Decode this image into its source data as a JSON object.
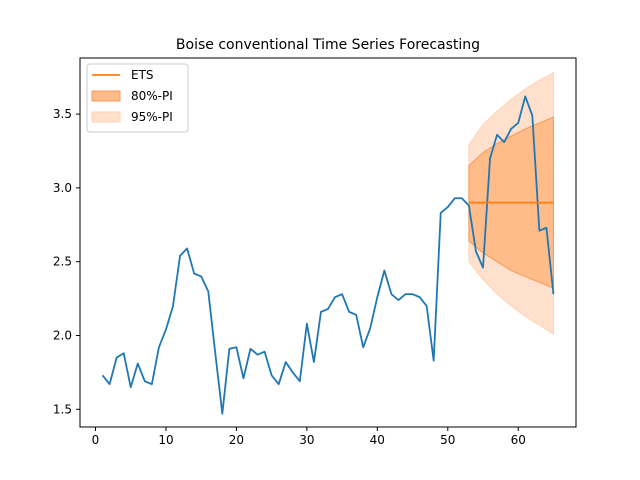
{
  "chart_data": {
    "type": "line",
    "title": "Boise conventional Time Series Forecasting",
    "xlabel": "",
    "ylabel": "",
    "xlim": [
      -2.2,
      68.2
    ],
    "ylim": [
      1.38,
      3.88
    ],
    "xticks": [
      0,
      10,
      20,
      30,
      40,
      50,
      60
    ],
    "yticks": [
      1.5,
      2.0,
      2.5,
      3.0,
      3.5
    ],
    "xtick_labels": [
      "0",
      "10",
      "20",
      "30",
      "40",
      "50",
      "60"
    ],
    "ytick_labels": [
      "1.5",
      "2.0",
      "2.5",
      "3.0",
      "3.5"
    ],
    "grid": false,
    "legend_position": "top-left",
    "colors": {
      "actual": "#1f77b4",
      "ets": "#ff7f0e",
      "pi80": "#ffbb88",
      "pi95": "#ffe0cc"
    },
    "series": [
      {
        "kind": "actual",
        "x": [
          1,
          2,
          3,
          4,
          5,
          6,
          7,
          8,
          9,
          10,
          11,
          12,
          13,
          14,
          15,
          16,
          17,
          18,
          19,
          20,
          21,
          22,
          23,
          24,
          25,
          26,
          27,
          28,
          29,
          30,
          31,
          32,
          33,
          34,
          35,
          36,
          37,
          38,
          39,
          40,
          41,
          42,
          43,
          44,
          45,
          46,
          47,
          48,
          49,
          50,
          51,
          52,
          53,
          54,
          55,
          56,
          57,
          58,
          59,
          60,
          61,
          62,
          63,
          64,
          65
        ],
        "values": [
          1.73,
          1.67,
          1.85,
          1.88,
          1.65,
          1.81,
          1.69,
          1.67,
          1.92,
          2.04,
          2.2,
          2.54,
          2.59,
          2.42,
          2.4,
          2.3,
          1.88,
          1.47,
          1.91,
          1.92,
          1.71,
          1.91,
          1.87,
          1.89,
          1.73,
          1.67,
          1.82,
          1.75,
          1.69,
          2.08,
          1.82,
          2.16,
          2.18,
          2.26,
          2.28,
          2.16,
          2.14,
          1.92,
          2.05,
          2.26,
          2.44,
          2.28,
          2.24,
          2.28,
          2.28,
          2.26,
          2.2,
          1.83,
          2.83,
          2.87,
          2.93,
          2.93,
          2.88,
          2.57,
          2.46,
          3.2,
          3.36,
          3.31,
          3.4,
          3.44,
          3.62,
          3.49,
          2.71,
          2.73,
          2.28
        ]
      },
      {
        "kind": "forecast",
        "name": "ETS",
        "x": [
          53,
          65
        ],
        "values": [
          2.9,
          2.9
        ]
      }
    ],
    "intervals": [
      {
        "name": "95%-PI",
        "x": [
          53,
          55,
          57,
          59,
          61,
          63,
          65
        ],
        "upper": [
          3.29,
          3.43,
          3.52,
          3.6,
          3.67,
          3.73,
          3.78
        ],
        "lower": [
          2.5,
          2.38,
          2.28,
          2.2,
          2.13,
          2.07,
          2.01
        ]
      },
      {
        "name": "80%-PI",
        "x": [
          53,
          55,
          57,
          59,
          61,
          63,
          65
        ],
        "upper": [
          3.15,
          3.24,
          3.3,
          3.35,
          3.4,
          3.44,
          3.48
        ],
        "lower": [
          2.64,
          2.56,
          2.5,
          2.44,
          2.4,
          2.36,
          2.32
        ]
      }
    ],
    "legend": [
      {
        "label": "ETS",
        "kind": "line",
        "color_key": "ets"
      },
      {
        "label": "80%-PI",
        "kind": "patch",
        "color_key": "pi80"
      },
      {
        "label": "95%-PI",
        "kind": "patch",
        "color_key": "pi95"
      }
    ]
  }
}
